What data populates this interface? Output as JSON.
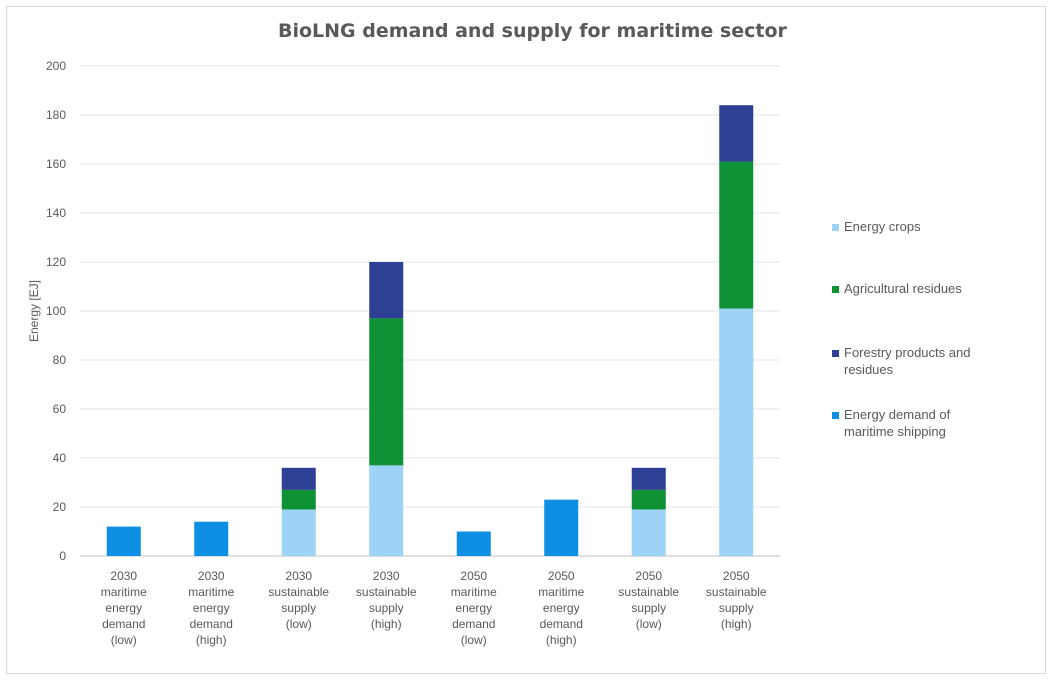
{
  "chart_data": {
    "type": "bar",
    "stacked": true,
    "title": "BioLNG demand and supply for maritime sector",
    "ylabel": "Energy [EJ]",
    "xlabel": "",
    "ylim": [
      0,
      200
    ],
    "yticks": [
      0,
      20,
      40,
      60,
      80,
      100,
      120,
      140,
      160,
      180,
      200
    ],
    "grid": true,
    "legend_position": "right",
    "categories": [
      [
        "2030",
        "maritime",
        "energy",
        "demand",
        "(low)"
      ],
      [
        "2030",
        "maritime",
        "energy",
        "demand",
        "(high)"
      ],
      [
        "2030",
        "sustainable",
        "supply",
        "(low)"
      ],
      [
        "2030",
        "sustainable",
        "supply",
        "(high)"
      ],
      [
        "2050",
        "maritime",
        "energy",
        "demand",
        "(low)"
      ],
      [
        "2050",
        "maritime",
        "energy",
        "demand",
        "(high)"
      ],
      [
        "2050",
        "sustainable",
        "supply",
        "(low)"
      ],
      [
        "2050",
        "sustainable",
        "supply",
        "(high)"
      ]
    ],
    "series": [
      {
        "name": "Energy crops",
        "color": "#9dd3f7",
        "values": [
          0,
          0,
          19,
          37,
          0,
          0,
          19,
          101
        ]
      },
      {
        "name": "Agricultural residues",
        "color": "#0f9136",
        "values": [
          0,
          0,
          8,
          60,
          0,
          0,
          8,
          60
        ]
      },
      {
        "name": "Forestry products and residues",
        "color": "#2e3f96",
        "values": [
          0,
          0,
          9,
          23,
          0,
          0,
          9,
          23
        ]
      },
      {
        "name": "Energy demand of maritime shipping",
        "color": "#0f8fe3",
        "values": [
          12,
          14,
          0,
          0,
          10,
          23,
          0,
          0
        ]
      }
    ],
    "legend_lines": [
      [
        "Energy crops"
      ],
      [
        "Agricultural residues"
      ],
      [
        "Forestry products and",
        "residues"
      ],
      [
        "Energy demand of",
        "maritime shipping"
      ]
    ]
  }
}
